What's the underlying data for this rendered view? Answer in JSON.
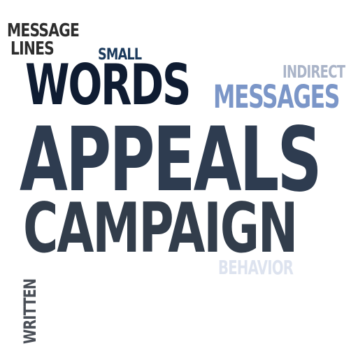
{
  "word_cloud": {
    "words": {
      "message": "MESSAGE",
      "lines": "LINES",
      "small": "SMALL",
      "indirect": "INDIRECT",
      "words": "WORDS",
      "messages": "MESSAGES",
      "appeals": "APPEALS",
      "campaign": "CAMPAIGN",
      "behavior": "BEHAVIOR",
      "written": "WRITTEN"
    },
    "colors": {
      "message": "#2d2d2d",
      "lines": "#2d2d2d",
      "small": "#1b3a5c",
      "indirect": "#aab4c8",
      "words": "#0f1c32",
      "messages": "#7b96c8",
      "appeals": "#2e3c50",
      "campaign": "#323d4b",
      "behavior": "#dde3ef",
      "written": "#4a4f57"
    }
  }
}
